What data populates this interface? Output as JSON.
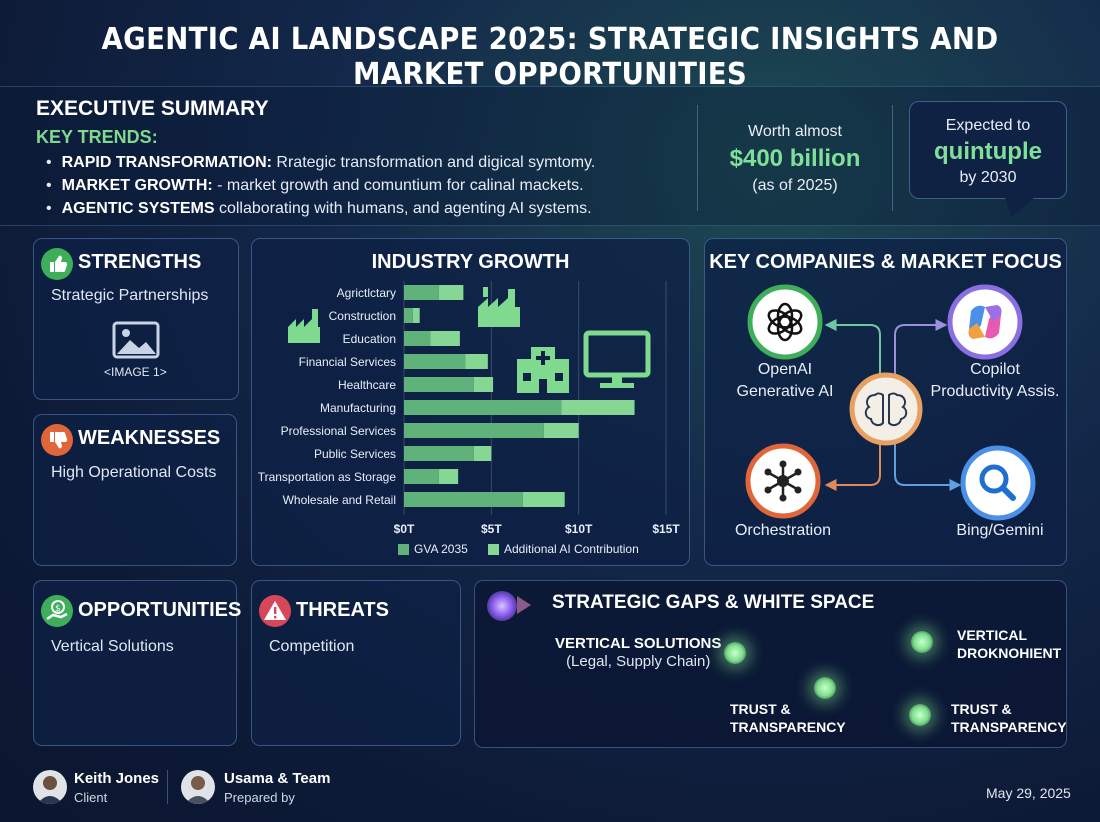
{
  "title": "AGENTIC AI LANDSCAPE 2025: STRATEGIC INSIGHTS AND MARKET OPPORTUNITIES",
  "executive_summary": {
    "heading": "EXECUTIVE SUMMARY",
    "key_trends_label": "KEY TRENDS:",
    "trends": [
      {
        "bold": "RAPID TRANSFORMATION:",
        "text": " Rrategic transformation and digical symtomy."
      },
      {
        "bold": "MARKET GROWTH:",
        "text": " - market growth and comuntium for calinal mackets."
      },
      {
        "bold": "AGENTIC SYSTEMS",
        "text": " collaborating with humans, and agenting AI systems."
      }
    ],
    "worth": {
      "line1": "Worth almost",
      "value": "$400 billion",
      "line3": "(as of 2025)"
    },
    "expected": {
      "line1": "Expected to",
      "value": "quintuple",
      "line3": "by 2030"
    }
  },
  "swot": {
    "strengths": {
      "title": "STRENGTHS",
      "text": "Strategic Partnerships",
      "image_label": "<IMAGE 1>",
      "icon": "thumbs-up-icon",
      "color": "#3fae5a"
    },
    "weaknesses": {
      "title": "WEAKNESSES",
      "text": "High Operational Costs",
      "icon": "thumbs-down-icon",
      "color": "#e0663a"
    },
    "opportunities": {
      "title": "OPPORTUNITIES",
      "text": "Vertical Solutions",
      "icon": "money-hand-icon",
      "color": "#3fae5a"
    },
    "threats": {
      "title": "THREATS",
      "text": "Competition",
      "icon": "warning-icon",
      "color": "#d8465a"
    }
  },
  "chart_data": {
    "type": "bar",
    "title": "INDUSTRY GROWTH",
    "orientation": "horizontal",
    "stacked": true,
    "categories": [
      "Agrictlctary",
      "Construction",
      "Education",
      "Financial Services",
      "Healthcare",
      "Manufacturing",
      "Professional Services",
      "Public Services",
      "Transportation as Storage",
      "Wholesale and Retail"
    ],
    "series": [
      {
        "name": "GVA 2035",
        "color": "#5fb37a",
        "values": [
          2.0,
          0.5,
          1.5,
          3.5,
          4.0,
          9.0,
          8.0,
          4.0,
          2.0,
          6.8
        ]
      },
      {
        "name": "Additional AI Contribution",
        "color": "#86d694",
        "values": [
          1.4,
          0.4,
          1.7,
          1.3,
          1.1,
          4.2,
          2.0,
          1.0,
          1.1,
          2.4
        ]
      }
    ],
    "xticks": [
      "$0T",
      "$5T",
      "$10T",
      "$15T"
    ],
    "xlim": [
      0,
      15
    ],
    "legend": "bottom",
    "grid": true
  },
  "companies": {
    "title": "KEY COMPANIES & MARKET FOCUS",
    "nodes": [
      {
        "name": "OpenAI",
        "sub": "Generative AI",
        "icon": "openai-icon"
      },
      {
        "name": "Copilot",
        "sub": "Productivity Assis.",
        "icon": "copilot-icon"
      },
      {
        "name": "Orchestration",
        "sub": "",
        "icon": "network-hub-icon"
      },
      {
        "name": "Bing/Gemini",
        "sub": "",
        "icon": "magnifier-icon"
      }
    ],
    "center_icon": "brain-icon"
  },
  "gaps": {
    "title": "STRATEGIC GAPS & WHITE SPACE",
    "items": [
      {
        "label": "VERTICAL SOLUTIONS",
        "sub": "(Legal, Supply Chain)"
      },
      {
        "label": "VERTICAL",
        "sub": "DROKNOHIENT"
      },
      {
        "label": "TRUST &",
        "sub": "TRANSPARENCY"
      },
      {
        "label": "TRUST &",
        "sub": "TRANSPARENCY"
      }
    ]
  },
  "footer": {
    "client_name": "Keith Jones",
    "client_role": "Client",
    "preparer_name": "Usama & Team",
    "preparer_role": "Prepared by",
    "date": "May 29, 2025"
  }
}
